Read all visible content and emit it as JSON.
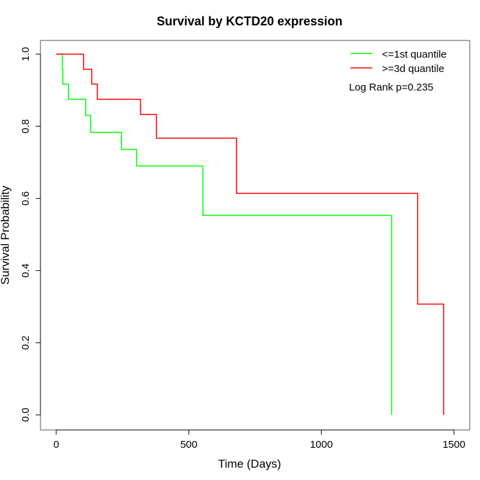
{
  "chart_data": {
    "type": "line",
    "title": "Survival by KCTD20 expression",
    "xlabel": "Time (Days)",
    "ylabel": "Survival Probability",
    "xlim": [
      0,
      1500
    ],
    "ylim": [
      0,
      1
    ],
    "xticks": [
      0,
      500,
      1000,
      1500
    ],
    "yticks": [
      0.0,
      0.2,
      0.4,
      0.6,
      0.8,
      1.0
    ],
    "grid": false,
    "legend_position": "top-right",
    "annotation": "Log Rank p=0.235",
    "series": [
      {
        "name": "<=1st quantile",
        "color": "#00ff00",
        "steps": [
          [
            0,
            1.0
          ],
          [
            23,
            0.958
          ],
          [
            25,
            0.917
          ],
          [
            46,
            0.875
          ],
          [
            111,
            0.83
          ],
          [
            130,
            0.783
          ],
          [
            246,
            0.736
          ],
          [
            303,
            0.69
          ],
          [
            553,
            0.553
          ],
          [
            1265,
            0.0
          ]
        ]
      },
      {
        "name": ">=3d quantile",
        "color": "#ff0000",
        "steps": [
          [
            0,
            1.0
          ],
          [
            103,
            0.958
          ],
          [
            134,
            0.917
          ],
          [
            155,
            0.875
          ],
          [
            318,
            0.833
          ],
          [
            378,
            0.767
          ],
          [
            680,
            0.614
          ],
          [
            1363,
            0.307
          ],
          [
            1461,
            0.0
          ]
        ]
      }
    ]
  }
}
